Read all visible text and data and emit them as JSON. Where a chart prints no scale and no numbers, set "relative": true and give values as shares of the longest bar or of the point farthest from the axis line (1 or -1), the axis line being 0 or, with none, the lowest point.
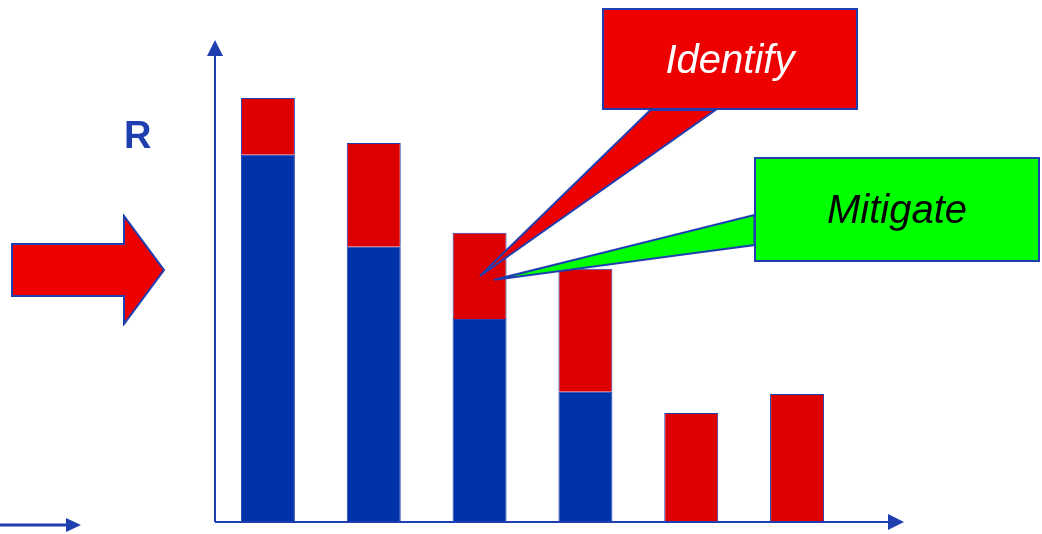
{
  "chart_data": {
    "type": "bar",
    "ylabel": "R",
    "relative": true,
    "stacked": true,
    "categories": [
      null,
      null,
      null,
      null,
      null,
      null
    ],
    "series": [
      {
        "color": "#0033aa",
        "values": [
          0.866,
          0.649,
          0.479,
          0.307,
          null,
          null
        ]
      },
      {
        "color": "#dd0000",
        "values": [
          0.134,
          0.245,
          0.203,
          0.29,
          0.257,
          0.302
        ]
      }
    ],
    "annotations": [
      "Identify",
      "Mitigate"
    ]
  }
}
